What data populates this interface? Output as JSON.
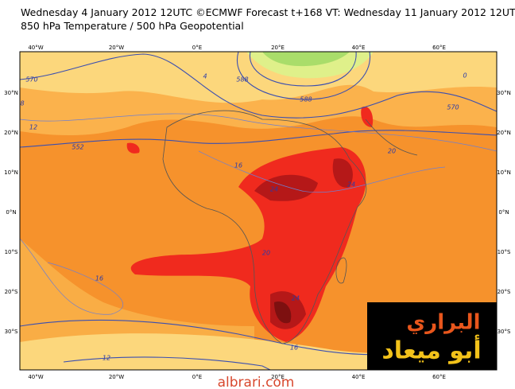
{
  "header": {
    "line1": "Wednesday 4 January 2012 12UTC ©ECMWF Forecast t+168 VT: Wednesday 11 January 2012 12UTC",
    "line2": "850 hPa Temperature / 500 hPa Geopotential"
  },
  "axes": {
    "lon_labels": [
      "40°W",
      "20°W",
      "0°E",
      "20°E",
      "40°E",
      "60°E"
    ],
    "lat_labels": [
      "30°N",
      "20°N",
      "10°N",
      "0°N",
      "10°S",
      "20°S",
      "30°S"
    ]
  },
  "contour_labels": [
    "570",
    "588",
    "588",
    "552",
    "570",
    "12",
    "16",
    "16",
    "20",
    "24",
    "24",
    "24",
    "20",
    "16",
    "12",
    "8",
    "4",
    "0"
  ],
  "logo": {
    "line1": "البراري",
    "line2": "أبو ميعاد"
  },
  "footer": "albrari.com"
}
